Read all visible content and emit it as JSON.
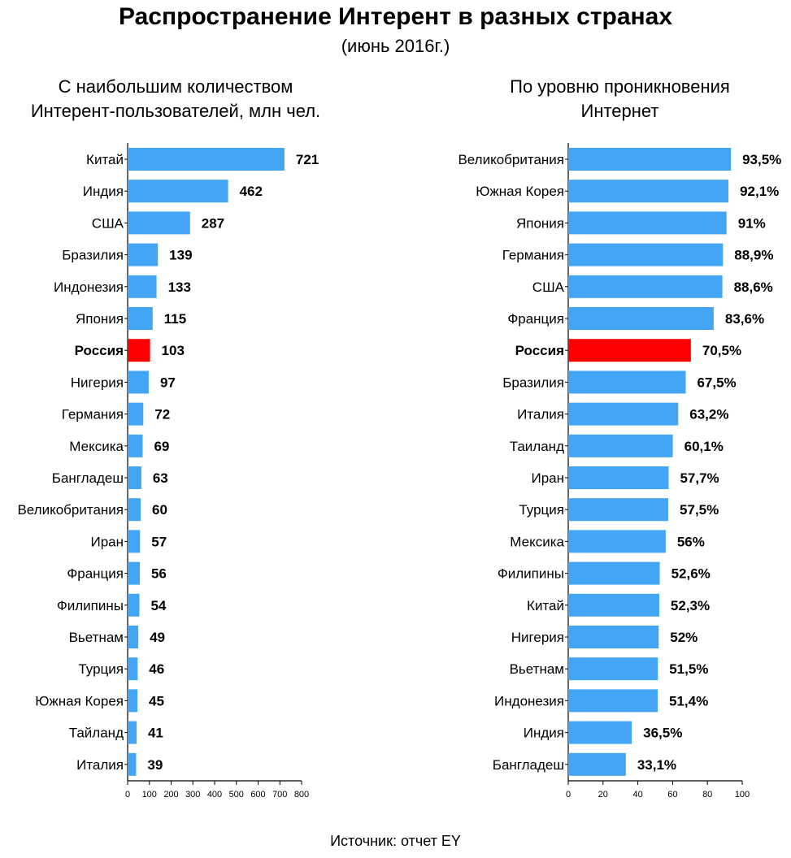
{
  "title": "Распространение Интерент в разных странах",
  "subtitle": "(июнь 2016г.)",
  "source": "Источник: отчет EY",
  "colors": {
    "bar": "#42a5f5",
    "highlight": "#ff0000",
    "axis": "#000000"
  },
  "chart_data": [
    {
      "type": "bar",
      "orientation": "horizontal",
      "title_lines": [
        "С наибольшим количеством",
        "Интерент-пользователей, млн чел."
      ],
      "categories": [
        "Китай",
        "Индия",
        "США",
        "Бразилия",
        "Индонезия",
        "Япония",
        "Россия",
        "Нигерия",
        "Германия",
        "Мексика",
        "Бангладеш",
        "Великобритания",
        "Иран",
        "Франция",
        "Филипины",
        "Вьетнам",
        "Турция",
        "Южная Корея",
        "Тайланд",
        "Италия"
      ],
      "values": [
        721,
        462,
        287,
        139,
        133,
        115,
        103,
        97,
        72,
        69,
        63,
        60,
        57,
        56,
        54,
        49,
        46,
        45,
        41,
        39
      ],
      "value_labels": [
        "721",
        "462",
        "287",
        "139",
        "133",
        "115",
        "103",
        "97",
        "72",
        "69",
        "63",
        "60",
        "57",
        "56",
        "54",
        "49",
        "46",
        "45",
        "41",
        "39"
      ],
      "highlight": "Россия",
      "xlim": [
        0,
        800
      ],
      "xticks": [
        0,
        100,
        200,
        300,
        400,
        500,
        600,
        700,
        800
      ],
      "grid": false
    },
    {
      "type": "bar",
      "orientation": "horizontal",
      "title_lines": [
        "По уровню проникновения",
        "Интернет"
      ],
      "categories": [
        "Великобритания",
        "Южная Корея",
        "Япония",
        "Германия",
        "США",
        "Франция",
        "Россия",
        "Бразилия",
        "Италия",
        "Таиланд",
        "Иран",
        "Турция",
        "Мексика",
        "Филипины",
        "Китай",
        "Нигерия",
        "Вьетнам",
        "Индонезия",
        "Индия",
        "Бангладеш"
      ],
      "values": [
        93.5,
        92.1,
        91,
        88.9,
        88.6,
        83.6,
        70.5,
        67.5,
        63.2,
        60.1,
        57.7,
        57.5,
        56,
        52.6,
        52.3,
        52,
        51.5,
        51.4,
        36.5,
        33.1
      ],
      "value_labels": [
        "93,5%",
        "92,1%",
        "91%",
        "88,9%",
        "88,6%",
        "83,6%",
        "70,5%",
        "67,5%",
        "63,2%",
        "60,1%",
        "57,7%",
        "57,5%",
        "56%",
        "52,6%",
        "52,3%",
        "52%",
        "51,5%",
        "51,4%",
        "36,5%",
        "33,1%"
      ],
      "highlight": "Россия",
      "xlim": [
        0,
        100
      ],
      "xticks": [
        0,
        20,
        40,
        60,
        80,
        100
      ],
      "grid": false
    }
  ]
}
